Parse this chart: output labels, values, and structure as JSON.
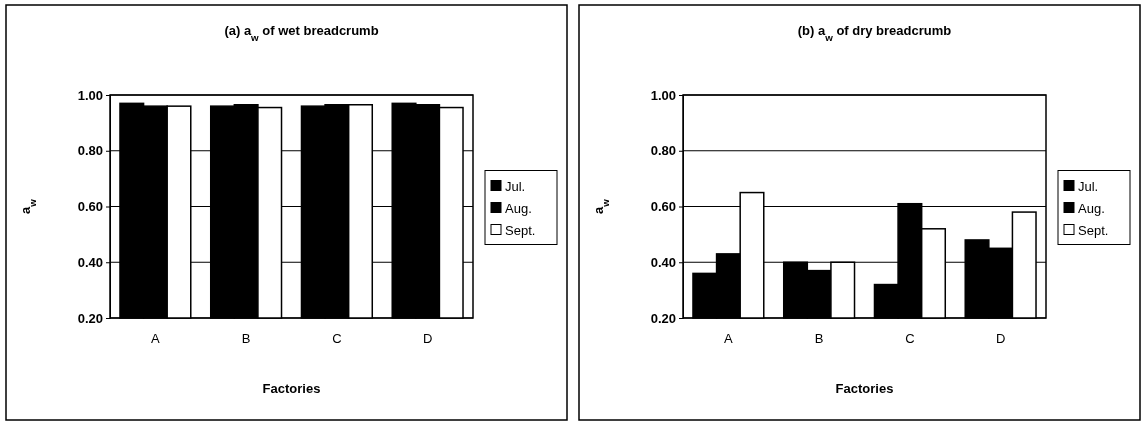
{
  "chart_data": [
    {
      "type": "bar",
      "title": "(a) a$_{w}$ of wet breadcrumb",
      "xlabel": "Factories",
      "ylabel": "a$_{w}$",
      "categories": [
        "A",
        "B",
        "C",
        "D"
      ],
      "series": [
        {
          "name": "Jul.",
          "color": "#000000",
          "values": [
            0.97,
            0.96,
            0.96,
            0.97
          ]
        },
        {
          "name": "Aug.",
          "color": "#000000",
          "values": [
            0.96,
            0.965,
            0.965,
            0.965
          ]
        },
        {
          "name": "Sept.",
          "color": "#ffffff",
          "values": [
            0.96,
            0.955,
            0.965,
            0.955
          ]
        }
      ],
      "ylim": [
        0.2,
        1.0
      ],
      "yticks": [
        {
          "value": 0.2,
          "label": "0.20"
        },
        {
          "value": 0.4,
          "label": "0.40"
        },
        {
          "value": 0.6,
          "label": "0.60"
        },
        {
          "value": 0.8,
          "label": "0.80"
        },
        {
          "value": 1.0,
          "label": "1.00"
        }
      ],
      "grid": "y",
      "legend": "right"
    },
    {
      "type": "bar",
      "title": "(b) a$_{w}$ of dry breadcrumb",
      "xlabel": "Factories",
      "ylabel": "a$_{w}$",
      "categories": [
        "A",
        "B",
        "C",
        "D"
      ],
      "series": [
        {
          "name": "Jul.",
          "color": "#000000",
          "values": [
            0.36,
            0.4,
            0.32,
            0.48
          ]
        },
        {
          "name": "Aug.",
          "color": "#000000",
          "values": [
            0.43,
            0.37,
            0.61,
            0.45
          ]
        },
        {
          "name": "Sept.",
          "color": "#ffffff",
          "values": [
            0.65,
            0.4,
            0.52,
            0.58
          ]
        }
      ],
      "ylim": [
        0.2,
        1.0
      ],
      "yticks": [
        {
          "value": 0.2,
          "label": "0.20"
        },
        {
          "value": 0.4,
          "label": "0.40"
        },
        {
          "value": 0.6,
          "label": "0.60"
        },
        {
          "value": 0.8,
          "label": "0.80"
        },
        {
          "value": 1.0,
          "label": "1.00"
        }
      ],
      "grid": "y",
      "legend": "right"
    }
  ]
}
